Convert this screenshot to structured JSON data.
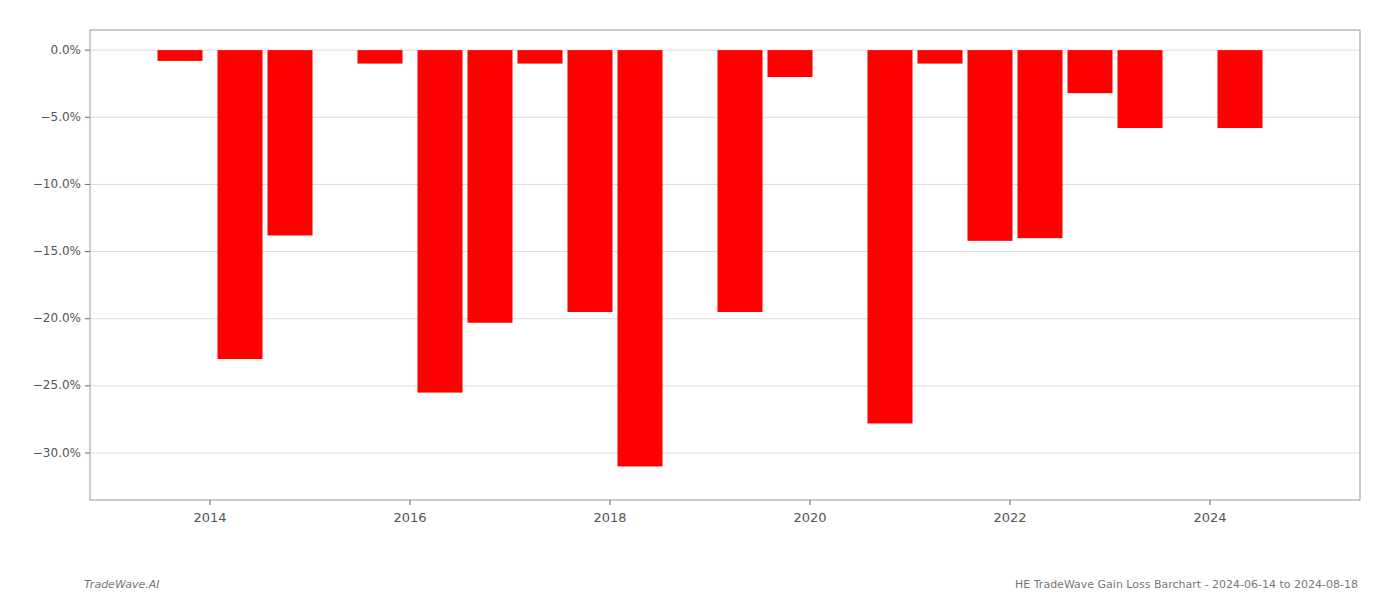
{
  "chart_data": {
    "type": "bar",
    "x": [
      2013.7,
      2014.3,
      2014.8,
      2015.7,
      2016.3,
      2016.8,
      2017.3,
      2017.8,
      2018.3,
      2019.3,
      2019.8,
      2020.8,
      2021.3,
      2021.8,
      2022.3,
      2022.8,
      2023.3,
      2024.3
    ],
    "values": [
      -0.8,
      -23.0,
      -13.8,
      -1.0,
      -25.5,
      -20.3,
      -1.0,
      -19.5,
      -31.0,
      -19.5,
      -2.0,
      -27.8,
      -1.0,
      -14.2,
      -14.0,
      -3.2,
      -5.8,
      -5.8
    ],
    "color": "#ff0000",
    "xlim": [
      2012.8,
      2025.5
    ],
    "xticks": [
      2014,
      2016,
      2018,
      2020,
      2022,
      2024
    ],
    "ylim": [
      -33.5,
      1.5
    ],
    "yticks": [
      {
        "value": 0.0,
        "label": "0.0%"
      },
      {
        "value": -5.0,
        "label": "−5.0%"
      },
      {
        "value": -10.0,
        "label": "−10.0%"
      },
      {
        "value": -15.0,
        "label": "−15.0%"
      },
      {
        "value": -20.0,
        "label": "−20.0%"
      },
      {
        "value": -25.0,
        "label": "−25.0%"
      },
      {
        "value": -30.0,
        "label": "−30.0%"
      }
    ],
    "grid": true,
    "annotations": [
      "TradeWave.AI",
      "HE TradeWave Gain Loss Barchart - 2024-06-14 to 2024-08-18"
    ]
  }
}
